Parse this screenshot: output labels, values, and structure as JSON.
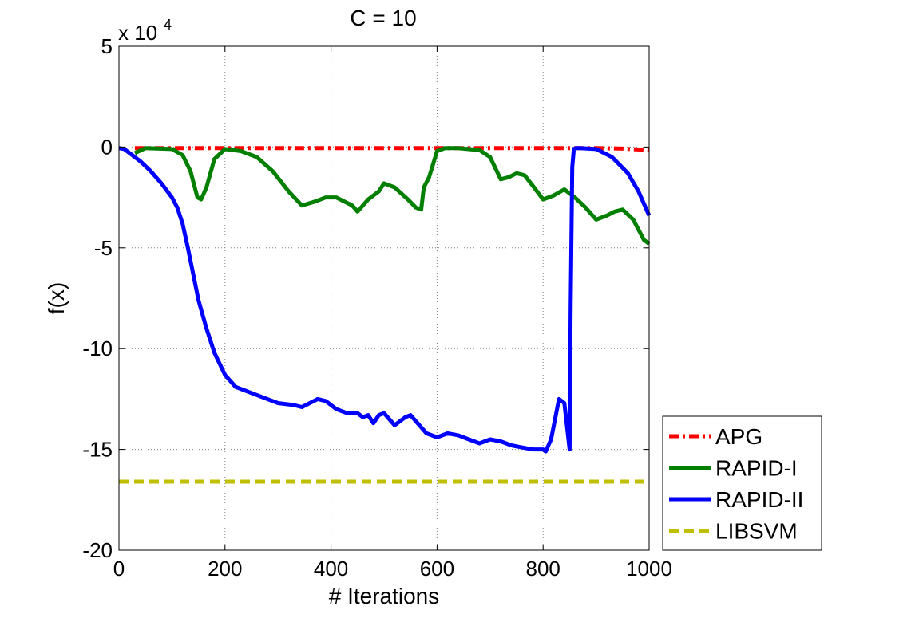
{
  "chart_data": {
    "type": "line",
    "title": "C = 10",
    "xlabel": "# Iterations",
    "ylabel": "f(x)",
    "y_exponent_label": "x 10",
    "y_exponent_power": "4",
    "xlim": [
      0,
      1000
    ],
    "ylim": [
      -20,
      5
    ],
    "xticks": [
      0,
      200,
      400,
      600,
      800,
      1000
    ],
    "yticks": [
      5,
      0,
      -5,
      -10,
      -15,
      -20
    ],
    "xtick_labels": [
      "0",
      "200",
      "400",
      "600",
      "800",
      "1000"
    ],
    "ytick_labels": [
      "5",
      "0",
      "-5",
      "-10",
      "-15",
      "-20"
    ],
    "grid": true,
    "legend_position": "bottom-right outside",
    "series": [
      {
        "name": "APG",
        "color": "#ff0000",
        "dash": "dashdot",
        "x": [
          30,
          100,
          200,
          300,
          400,
          500,
          600,
          700,
          800,
          900,
          950,
          1000
        ],
        "y": [
          -0.05,
          -0.05,
          -0.05,
          -0.05,
          -0.05,
          -0.05,
          -0.05,
          -0.05,
          -0.05,
          -0.05,
          -0.08,
          -0.15
        ]
      },
      {
        "name": "RAPID-I",
        "color": "#007f00",
        "dash": "solid",
        "x": [
          30,
          50,
          100,
          120,
          135,
          148,
          155,
          165,
          180,
          200,
          230,
          260,
          290,
          320,
          345,
          370,
          390,
          410,
          440,
          450,
          470,
          490,
          500,
          520,
          545,
          560,
          570,
          575,
          585,
          600,
          615,
          640,
          680,
          700,
          720,
          735,
          750,
          765,
          780,
          800,
          820,
          840,
          860,
          880,
          900,
          920,
          935,
          950,
          970,
          990,
          1000
        ],
        "y": [
          -0.3,
          -0.05,
          -0.1,
          -0.4,
          -1.2,
          -2.5,
          -2.6,
          -2.0,
          -0.6,
          -0.1,
          -0.2,
          -0.5,
          -1.2,
          -2.2,
          -2.9,
          -2.7,
          -2.5,
          -2.5,
          -2.9,
          -3.2,
          -2.6,
          -2.2,
          -1.8,
          -2.0,
          -2.6,
          -3.0,
          -3.1,
          -2.0,
          -1.5,
          -0.2,
          -0.05,
          -0.05,
          -0.15,
          -0.5,
          -1.6,
          -1.5,
          -1.3,
          -1.4,
          -1.9,
          -2.6,
          -2.4,
          -2.1,
          -2.5,
          -3.0,
          -3.6,
          -3.4,
          -3.2,
          -3.1,
          -3.6,
          -4.6,
          -4.8
        ]
      },
      {
        "name": "RAPID-II",
        "color": "#0000ff",
        "dash": "solid",
        "x": [
          0,
          10,
          20,
          40,
          60,
          80,
          100,
          110,
          120,
          130,
          140,
          150,
          165,
          180,
          200,
          220,
          240,
          270,
          300,
          330,
          345,
          360,
          375,
          390,
          410,
          430,
          450,
          460,
          470,
          480,
          490,
          500,
          510,
          520,
          540,
          550,
          560,
          580,
          600,
          620,
          640,
          660,
          680,
          700,
          720,
          740,
          760,
          780,
          800,
          805,
          815,
          830,
          840,
          850,
          852,
          855,
          858,
          862,
          870,
          900,
          930,
          960,
          980,
          1000
        ],
        "y": [
          -0.05,
          -0.1,
          -0.3,
          -0.7,
          -1.2,
          -1.8,
          -2.5,
          -3.0,
          -3.8,
          -5.0,
          -6.3,
          -7.6,
          -9.0,
          -10.2,
          -11.3,
          -11.9,
          -12.1,
          -12.4,
          -12.7,
          -12.8,
          -12.9,
          -12.7,
          -12.5,
          -12.6,
          -13.0,
          -13.2,
          -13.2,
          -13.4,
          -13.3,
          -13.7,
          -13.3,
          -13.2,
          -13.5,
          -13.8,
          -13.4,
          -13.3,
          -13.6,
          -14.2,
          -14.4,
          -14.2,
          -14.3,
          -14.5,
          -14.7,
          -14.5,
          -14.6,
          -14.8,
          -14.9,
          -15.0,
          -15.0,
          -15.1,
          -14.5,
          -12.5,
          -12.7,
          -15.0,
          -8.0,
          -1.0,
          -0.1,
          -0.05,
          -0.05,
          -0.1,
          -0.5,
          -1.3,
          -2.2,
          -3.4
        ]
      },
      {
        "name": "LIBSVM",
        "color": "#bfbf00",
        "dash": "dashed",
        "x": [
          0,
          1000
        ],
        "y": [
          -16.6,
          -16.6
        ]
      }
    ]
  }
}
